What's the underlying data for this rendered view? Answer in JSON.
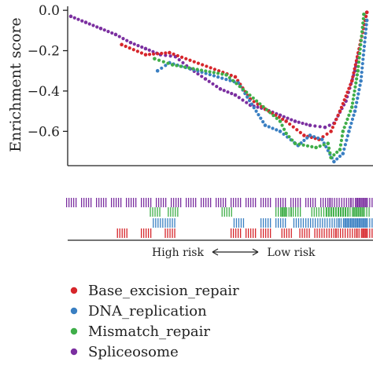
{
  "chart_data": {
    "type": "scatter",
    "ylabel": "Enrichment score",
    "ylim": [
      -0.77,
      0.02
    ],
    "yticks": [
      0.0,
      -0.2,
      -0.4,
      -0.6
    ],
    "ytick_labels": [
      "0.0",
      "−0.2",
      "−0.4",
      "−0.6"
    ],
    "xlim": [
      0,
      1
    ],
    "risk_axis": {
      "left": "High risk",
      "right": "Low risk",
      "arrow": "⟵⟶"
    },
    "legend_placement": "bottom-left",
    "series": [
      {
        "name": "Base_excision_repair",
        "color": "#d6262b",
        "x": [
          0.17,
          0.25,
          0.33,
          0.55,
          0.6,
          0.65,
          0.72,
          0.78,
          0.83,
          0.87,
          0.9,
          0.94,
          0.97,
          0.99
        ],
        "y": [
          -0.17,
          -0.22,
          -0.21,
          -0.33,
          -0.44,
          -0.49,
          -0.55,
          -0.62,
          -0.64,
          -0.6,
          -0.5,
          -0.35,
          -0.15,
          -0.01
        ]
      },
      {
        "name": "DNA_replication",
        "color": "#3a7fc2",
        "x": [
          0.29,
          0.33,
          0.56,
          0.65,
          0.7,
          0.76,
          0.8,
          0.84,
          0.88,
          0.91,
          0.93,
          0.95,
          0.97,
          0.99
        ],
        "y": [
          -0.3,
          -0.26,
          -0.36,
          -0.57,
          -0.6,
          -0.67,
          -0.62,
          -0.64,
          -0.75,
          -0.71,
          -0.6,
          -0.5,
          -0.35,
          -0.05
        ]
      },
      {
        "name": "Mismatch_repair",
        "color": "#3fae49",
        "x": [
          0.28,
          0.34,
          0.52,
          0.7,
          0.72,
          0.75,
          0.82,
          0.86,
          0.87,
          0.9,
          0.91,
          0.94,
          0.96,
          0.98
        ],
        "y": [
          -0.24,
          -0.27,
          -0.32,
          -0.55,
          -0.61,
          -0.66,
          -0.68,
          -0.66,
          -0.73,
          -0.69,
          -0.6,
          -0.48,
          -0.3,
          -0.02
        ]
      },
      {
        "name": "Spliceosome",
        "color": "#7b2fa0",
        "x": [
          0.0,
          0.05,
          0.1,
          0.15,
          0.2,
          0.25,
          0.3,
          0.35,
          0.4,
          0.45,
          0.5,
          0.55,
          0.6,
          0.65,
          0.7,
          0.75,
          0.8,
          0.85,
          0.88,
          0.92,
          0.95,
          0.97,
          0.99
        ],
        "y": [
          -0.03,
          -0.06,
          -0.09,
          -0.12,
          -0.16,
          -0.19,
          -0.22,
          -0.23,
          -0.29,
          -0.34,
          -0.39,
          -0.42,
          -0.47,
          -0.49,
          -0.52,
          -0.55,
          -0.57,
          -0.58,
          -0.56,
          -0.45,
          -0.3,
          -0.15,
          -0.01
        ]
      }
    ]
  }
}
